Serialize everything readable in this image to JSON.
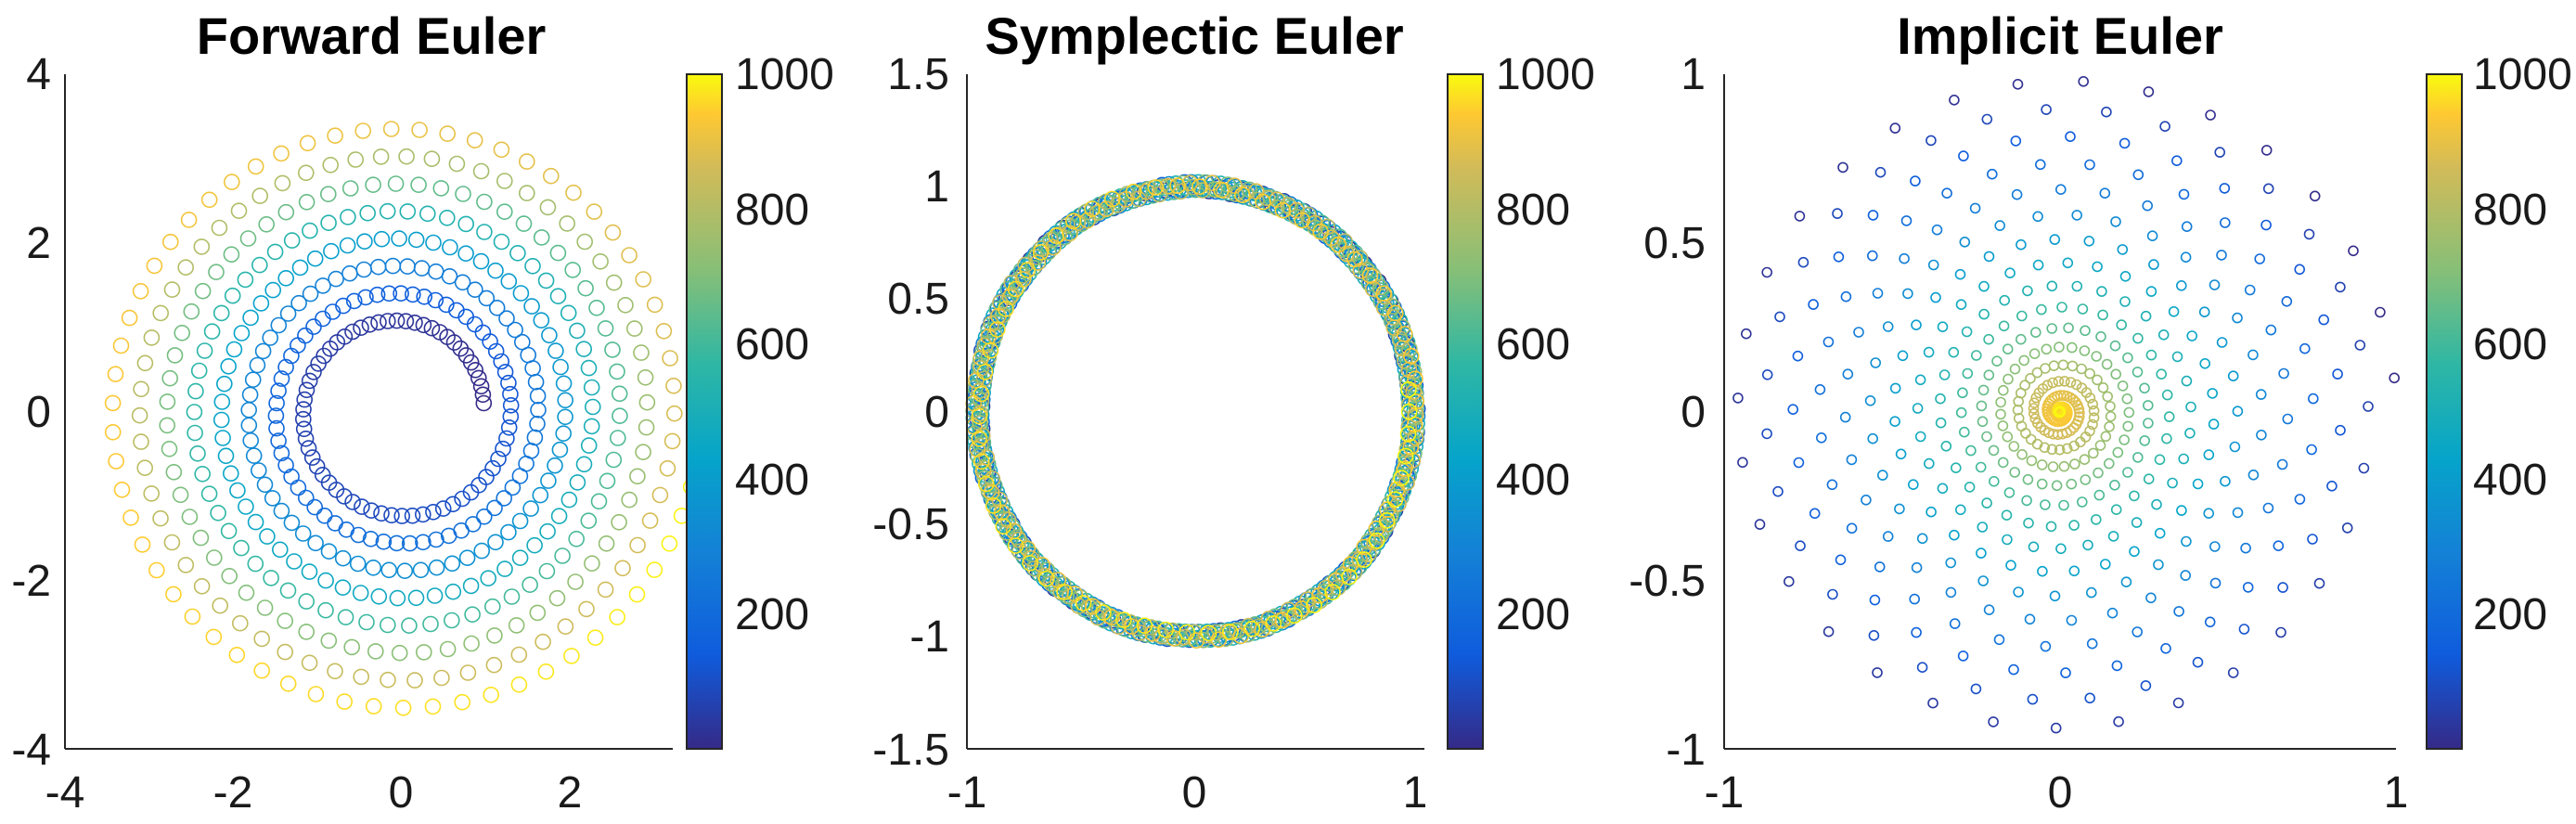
{
  "chart_data": [
    {
      "type": "scatter",
      "title": "Forward Euler",
      "xlabel": "",
      "ylabel": "",
      "xlim": [
        -4,
        3.25
      ],
      "ylim": [
        -4,
        4
      ],
      "xticks": [
        "-4",
        "-2",
        "0",
        "2"
      ],
      "yticks": [
        "-4",
        "-2",
        "0",
        "2",
        "4"
      ],
      "colorbar": {
        "range": [
          0,
          1000
        ],
        "ticks": [
          "200",
          "400",
          "600",
          "800",
          "1000"
        ]
      },
      "marker": "open-circle",
      "grid": false,
      "series": [
        {
          "n_points": 1000,
          "x0": 1.0,
          "y0": 0.1,
          "r0": 1.0,
          "r_end": 3.6,
          "turns": 8.0,
          "direction": "counterclockwise",
          "color_by": "index"
        }
      ]
    },
    {
      "type": "scatter",
      "title": "Symplectic Euler",
      "xlabel": "",
      "ylabel": "",
      "xlim": [
        -1.05,
        1.05
      ],
      "ylim": [
        -1.5,
        1.5
      ],
      "xticks": [
        "-1",
        "0",
        "1"
      ],
      "yticks": [
        "-1.5",
        "-1",
        "-0.5",
        "0",
        "0.5",
        "1",
        "1.5"
      ],
      "colorbar": {
        "range": [
          0,
          1000
        ],
        "ticks": [
          "200",
          "400",
          "600",
          "800",
          "1000"
        ]
      },
      "marker": "open-circle",
      "grid": false,
      "series": [
        {
          "n_points": 1000,
          "x0": 1.0,
          "y0": 0.1,
          "r0": 1.0,
          "r_end": 1.0,
          "turns": 16.0,
          "direction": "counterclockwise",
          "color_by": "index"
        }
      ]
    },
    {
      "type": "scatter",
      "title": "Implicit Euler",
      "xlabel": "",
      "ylabel": "",
      "xlim": [
        -1,
        1
      ],
      "ylim": [
        -1,
        1
      ],
      "xticks": [
        "-1",
        "0",
        "1"
      ],
      "yticks": [
        "-1",
        "-0.5",
        "0",
        "0.5",
        "1"
      ],
      "colorbar": {
        "range": [
          0,
          1000
        ],
        "ticks": [
          "200",
          "400",
          "600",
          "800",
          "1000"
        ]
      },
      "marker": "open-circle",
      "grid": false,
      "series": [
        {
          "n_points": 1000,
          "x0": 1.0,
          "y0": 0.1,
          "r0": 1.0,
          "r_end": 0.0,
          "turns": 15.9,
          "direction": "counterclockwise",
          "color_by": "index"
        }
      ]
    }
  ]
}
